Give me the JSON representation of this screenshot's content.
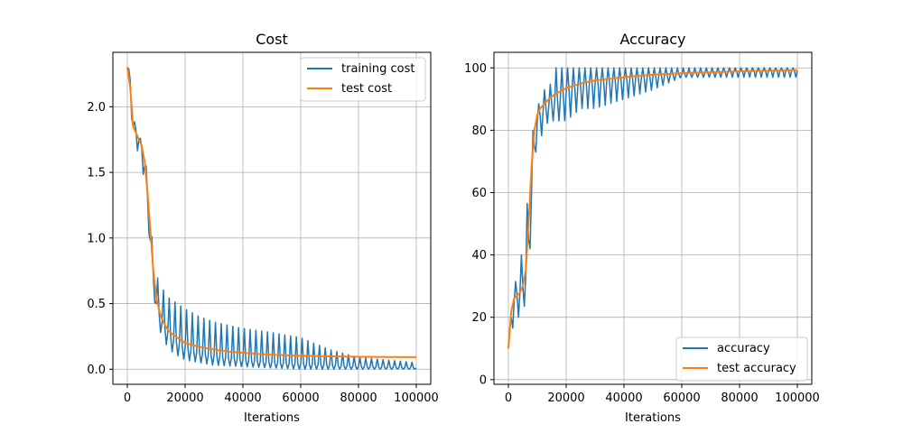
{
  "colors": {
    "series1": "#1f77b4",
    "series2": "#ff7f0e",
    "grid": "#b0b0b0",
    "axis": "#000000",
    "legend_border": "#cccccc"
  },
  "chart_data": [
    {
      "type": "line",
      "title": "Cost",
      "xlabel": "Iterations",
      "ylabel": "",
      "xlim": [
        -5000,
        105000
      ],
      "ylim": [
        -0.115,
        2.415
      ],
      "xticks": [
        0,
        20000,
        40000,
        60000,
        80000,
        100000
      ],
      "xtick_labels": [
        "0",
        "20000",
        "40000",
        "60000",
        "80000",
        "100000"
      ],
      "yticks": [
        0.0,
        0.5,
        1.0,
        1.5,
        2.0
      ],
      "ytick_labels": [
        "0.0",
        "0.5",
        "1.0",
        "1.5",
        "2.0"
      ],
      "grid": true,
      "legend_position": "upper right",
      "series": [
        {
          "name": "training cost",
          "style": "oscillating",
          "trend": {
            "x": [
              0,
              1000,
              2000,
              3000,
              4000,
              5000,
              6000,
              7000,
              8000,
              9000,
              10000,
              12000,
              14000,
              16000,
              20000,
              25000,
              30000,
              40000,
              50000,
              60000,
              70000,
              80000,
              90000,
              100000
            ],
            "y": [
              2.3,
              2.2,
              1.85,
              1.82,
              1.75,
              1.68,
              1.55,
              1.3,
              0.98,
              0.7,
              0.5,
              0.35,
              0.28,
              0.22,
              0.16,
              0.12,
              0.1,
              0.07,
              0.05,
              0.04,
              0.03,
              0.02,
              0.015,
              0.01
            ]
          },
          "upper": {
            "x": [
              0,
              1000,
              2000,
              3000,
              4000,
              5000,
              6000,
              7000,
              8000,
              9000,
              10000,
              12000,
              14000,
              16000,
              20000,
              25000,
              30000,
              40000,
              50000,
              60000,
              70000,
              80000,
              90000,
              100000
            ],
            "y": [
              2.3,
              2.28,
              1.92,
              1.85,
              1.8,
              1.72,
              1.65,
              1.45,
              1.3,
              0.72,
              0.72,
              0.62,
              0.55,
              0.52,
              0.46,
              0.4,
              0.36,
              0.31,
              0.28,
              0.24,
              0.15,
              0.09,
              0.07,
              0.05
            ]
          },
          "lower": {
            "x": [
              0,
              1000,
              2000,
              3000,
              4000,
              5000,
              6000,
              7000,
              8000,
              9000,
              10000,
              12000,
              14000,
              16000,
              20000,
              25000,
              30000,
              40000,
              50000,
              60000,
              70000,
              80000,
              90000,
              100000
            ],
            "y": [
              2.28,
              2.05,
              1.78,
              1.7,
              1.63,
              1.55,
              1.42,
              1.1,
              0.95,
              0.62,
              0.4,
              0.24,
              0.17,
              0.12,
              0.07,
              0.05,
              0.03,
              0.02,
              0.01,
              0.0,
              0.0,
              0.0,
              0.0,
              0.0
            ]
          },
          "period": 2000
        },
        {
          "name": "test cost",
          "style": "smooth",
          "x": [
            0,
            1000,
            2000,
            3000,
            4000,
            5000,
            6000,
            7000,
            8000,
            9000,
            10000,
            11000,
            12000,
            14000,
            16000,
            18000,
            20000,
            25000,
            30000,
            35000,
            40000,
            45000,
            50000,
            60000,
            70000,
            80000,
            90000,
            100000
          ],
          "y": [
            2.3,
            2.15,
            1.85,
            1.8,
            1.75,
            1.7,
            1.58,
            1.35,
            1.05,
            0.75,
            0.55,
            0.45,
            0.38,
            0.3,
            0.26,
            0.23,
            0.2,
            0.17,
            0.15,
            0.135,
            0.125,
            0.117,
            0.11,
            0.103,
            0.098,
            0.095,
            0.093,
            0.092
          ]
        }
      ]
    },
    {
      "type": "line",
      "title": "Accuracy",
      "xlabel": "Iterations",
      "ylabel": "",
      "xlim": [
        -5000,
        105000
      ],
      "ylim": [
        -1.5,
        105
      ],
      "xticks": [
        0,
        20000,
        40000,
        60000,
        80000,
        100000
      ],
      "xtick_labels": [
        "0",
        "20000",
        "40000",
        "60000",
        "80000",
        "100000"
      ],
      "yticks": [
        0,
        20,
        40,
        60,
        80,
        100
      ],
      "ytick_labels": [
        "0",
        "20",
        "40",
        "60",
        "80",
        "100"
      ],
      "grid": true,
      "legend_position": "lower right",
      "series": [
        {
          "name": "accuracy",
          "style": "oscillating",
          "trend": {
            "x": [
              0,
              1000,
              2000,
              3000,
              4000,
              5000,
              6000,
              7000,
              8000,
              9000,
              10000,
              12000,
              14000,
              16000,
              20000,
              25000,
              30000,
              40000,
              50000,
              60000,
              70000,
              80000,
              90000,
              100000
            ],
            "y": [
              10,
              20,
              25,
              27,
              28,
              30,
              33,
              45,
              60,
              75,
              83,
              86,
              88,
              89,
              92,
              94,
              95,
              96,
              97,
              98,
              98.5,
              99,
              99,
              99
            ]
          },
          "upper": {
            "x": [
              0,
              1000,
              2000,
              3000,
              4000,
              5000,
              6000,
              7000,
              8000,
              9000,
              10000,
              12000,
              14000,
              16000,
              20000,
              25000,
              30000,
              40000,
              50000,
              60000,
              70000,
              80000,
              90000,
              100000
            ],
            "y": [
              10,
              23,
              30,
              33,
              40,
              40,
              50,
              63,
              73,
              87,
              87,
              93,
              93,
              100,
              100,
              100,
              100,
              100,
              100,
              100,
              100,
              100,
              100,
              100
            ]
          },
          "lower": {
            "x": [
              0,
              1000,
              2000,
              3000,
              4000,
              5000,
              6000,
              7000,
              8000,
              9000,
              10000,
              12000,
              14000,
              16000,
              20000,
              25000,
              30000,
              40000,
              50000,
              60000,
              70000,
              80000,
              90000,
              100000
            ],
            "y": [
              3,
              13,
              20,
              20,
              20,
              20,
              27,
              37,
              47,
              73,
              73,
              80,
              83,
              83,
              83,
              87,
              87,
              90,
              93,
              97,
              97,
              97,
              97,
              97
            ]
          },
          "period": 2000
        },
        {
          "name": "test accuracy",
          "style": "smooth",
          "x": [
            0,
            1000,
            2000,
            3000,
            4000,
            5000,
            6000,
            7000,
            8000,
            9000,
            10000,
            11000,
            12000,
            14000,
            16000,
            18000,
            20000,
            25000,
            30000,
            35000,
            40000,
            45000,
            50000,
            60000,
            70000,
            80000,
            90000,
            100000
          ],
          "y": [
            10,
            22,
            26,
            27,
            28,
            30,
            35,
            50,
            68,
            80,
            85,
            87,
            88,
            90,
            91.5,
            92.5,
            93.5,
            95,
            96,
            96.5,
            97,
            97.5,
            97.8,
            98.3,
            98.6,
            98.9,
            99.1,
            99.3
          ]
        }
      ]
    }
  ]
}
